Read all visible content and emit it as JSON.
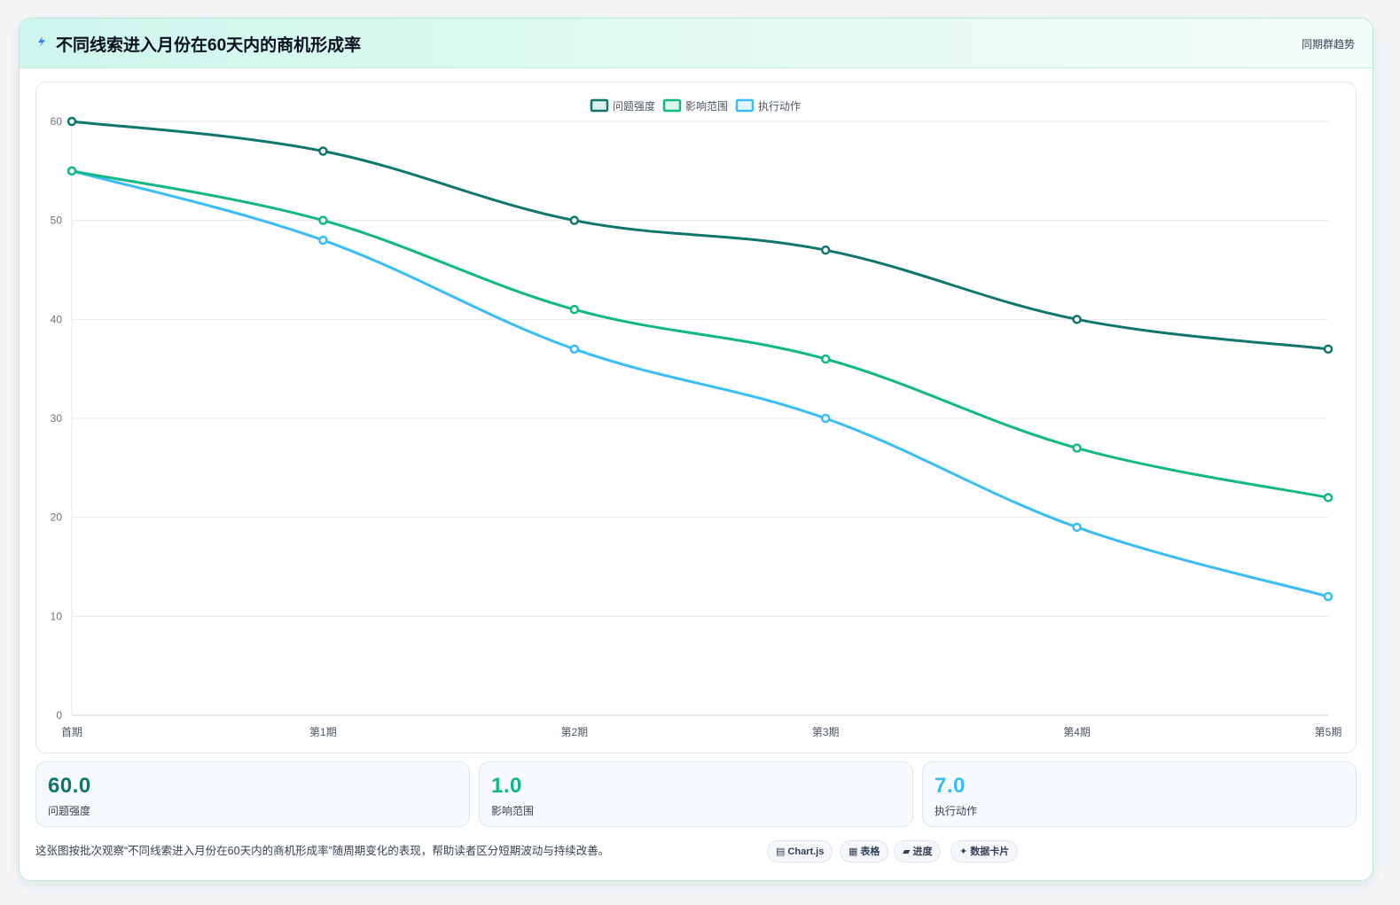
{
  "header": {
    "title": "不同线索进入月份在60天内的商机形成率",
    "tag": "同期群趋势",
    "icon": "lightning-icon"
  },
  "chart_data": {
    "type": "line",
    "categories": [
      "首期",
      "第1期",
      "第2期",
      "第3期",
      "第4期",
      "第5期"
    ],
    "series": [
      {
        "name": "问题强度",
        "values": [
          60,
          57,
          50,
          47,
          40,
          37
        ],
        "color": "#0f766e"
      },
      {
        "name": "影响范围",
        "values": [
          55,
          50,
          41,
          36,
          27,
          22
        ],
        "color": "#10b981"
      },
      {
        "name": "执行动作",
        "values": [
          55,
          48,
          37,
          30,
          19,
          12
        ],
        "color": "#38bdf8"
      }
    ],
    "ylim": [
      0,
      60
    ],
    "yticks": [
      0,
      10,
      20,
      30,
      40,
      50,
      60
    ],
    "legend": "top-center",
    "grid": true
  },
  "stats": [
    {
      "value": "60.0",
      "label": "问题强度",
      "color": "#0f766e"
    },
    {
      "value": "1.0",
      "label": "影响范围",
      "color": "#10b981"
    },
    {
      "value": "7.0",
      "label": "执行动作",
      "color": "#38bdf8"
    }
  ],
  "footnote": "这张图按批次观察“不同线索进入月份在60天内的商机形成率”随周期变化的表现，帮助读者区分短期波动与持续改善。",
  "chips": [
    {
      "glyph": "▤",
      "label": "Chart.js",
      "icon": "chart-icon"
    },
    {
      "glyph": "▦",
      "label": "表格",
      "icon": "table-icon"
    },
    {
      "glyph": "▰",
      "label": "进度",
      "icon": "progress-icon"
    },
    {
      "glyph": "✦",
      "label": "数据卡片",
      "icon": "sparkle-icon"
    }
  ]
}
